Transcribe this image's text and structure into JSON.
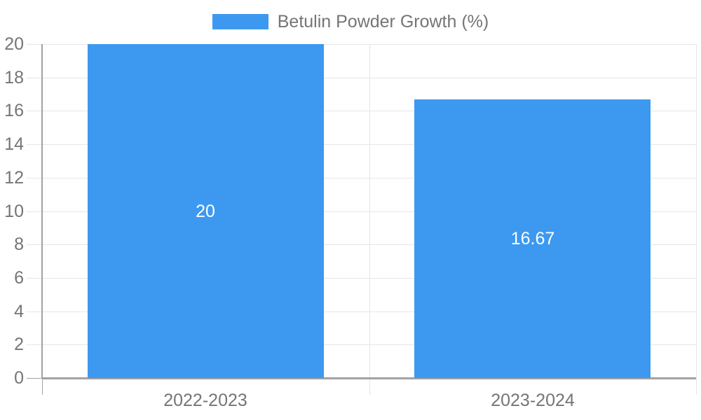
{
  "chart_data": {
    "type": "bar",
    "title": "",
    "legend_position": "top",
    "categories": [
      "2022-2023",
      "2023-2024"
    ],
    "series": [
      {
        "name": "Betulin Powder Growth (%)",
        "values": [
          20,
          16.67
        ],
        "value_labels": [
          "20",
          "16.67"
        ]
      }
    ],
    "xlabel": "",
    "ylabel": "",
    "ylim": [
      0,
      20
    ],
    "ytick_step": 2,
    "yticks": [
      0,
      2,
      4,
      6,
      8,
      10,
      12,
      14,
      16,
      18,
      20
    ],
    "grid": true,
    "colors": {
      "bar": "#3D99F0",
      "grid": "#e6e6e6",
      "axis": "#a2a2a2",
      "tick_label": "#757575",
      "value_label": "#ffffff",
      "background": "#ffffff"
    }
  }
}
